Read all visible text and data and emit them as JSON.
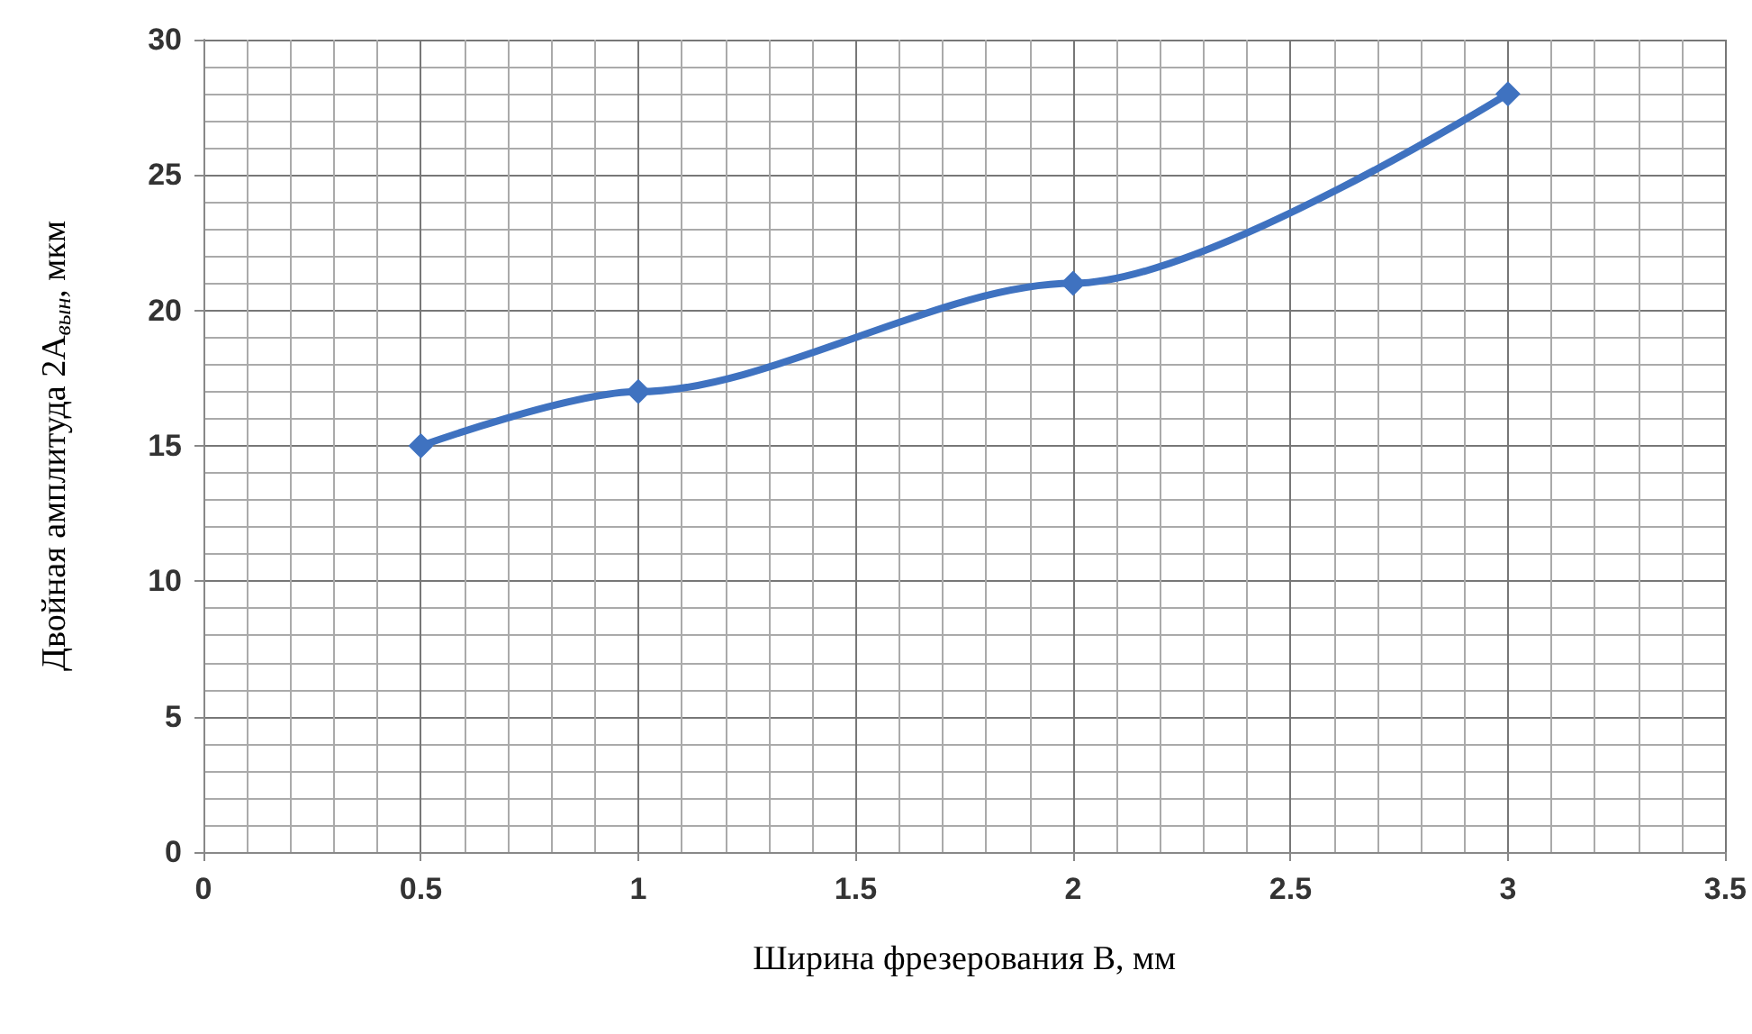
{
  "chart_data": {
    "type": "line",
    "xlabel": "Ширина фрезерования B, мм",
    "ylabel": "Двойная амплитуда 2A$_{вын}$, мкм",
    "x": [
      0.5,
      1,
      2,
      3
    ],
    "series": [
      {
        "color": "#3f72c0",
        "values": [
          15,
          17,
          21,
          28
        ]
      }
    ],
    "xlim": [
      0,
      3.5
    ],
    "xticks": [
      0,
      0.5,
      1,
      1.5,
      2,
      2.5,
      3,
      3.5
    ],
    "ylim": [
      0,
      30
    ],
    "yticks": [
      0,
      5,
      10,
      15,
      20,
      25,
      30
    ],
    "grid": true,
    "marker": "diamond",
    "line_style": "solid"
  }
}
